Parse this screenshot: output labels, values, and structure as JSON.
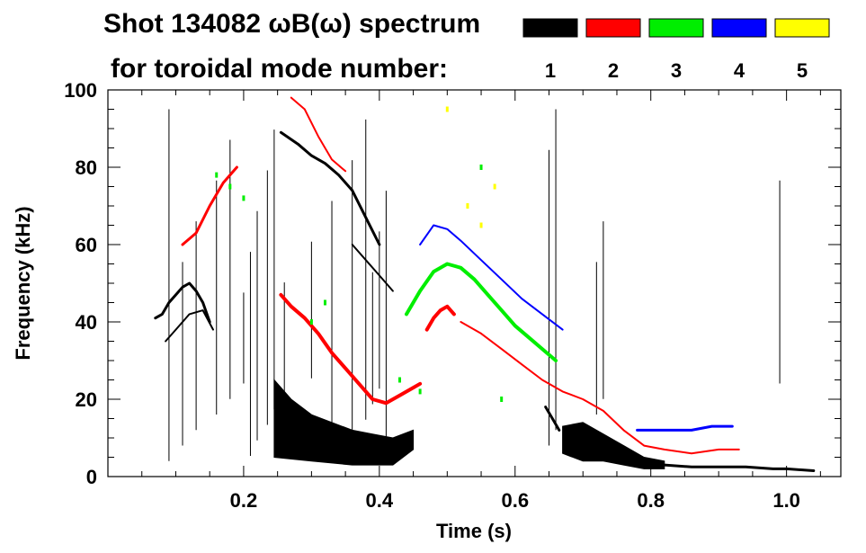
{
  "chart_data": {
    "type": "heatmap",
    "title_line1": "Shot 134082 ωB(ω) spectrum",
    "title_line2": "for toroidal mode number:",
    "xlabel": "Time (s)",
    "ylabel": "Frequency (kHz)",
    "xlim": [
      0.0,
      1.08
    ],
    "ylim": [
      0,
      100
    ],
    "x_ticks": [
      "0.2",
      "0.4",
      "0.6",
      "0.8",
      "1.0"
    ],
    "x_tick_values": [
      0.2,
      0.4,
      0.6,
      0.8,
      1.0
    ],
    "y_ticks": [
      "0",
      "20",
      "40",
      "60",
      "80",
      "100"
    ],
    "y_tick_values": [
      0,
      20,
      40,
      60,
      80,
      100
    ],
    "legend": [
      {
        "label": "1",
        "color": "#000000"
      },
      {
        "label": "2",
        "color": "#ff0000"
      },
      {
        "label": "3",
        "color": "#00ee00"
      },
      {
        "label": "4",
        "color": "#0000ff"
      },
      {
        "label": "5",
        "color": "#ffff00"
      }
    ],
    "legend_placement": "top-right",
    "features": [
      {
        "mode": "1",
        "kind": "line",
        "name": "n1-early-burst",
        "width": 3,
        "points": [
          [
            0.07,
            41
          ],
          [
            0.08,
            42
          ],
          [
            0.09,
            45
          ],
          [
            0.1,
            47
          ],
          [
            0.11,
            49
          ],
          [
            0.12,
            50
          ],
          [
            0.13,
            48
          ],
          [
            0.14,
            45
          ],
          [
            0.15,
            40
          ]
        ]
      },
      {
        "mode": "1",
        "kind": "line",
        "name": "n1-early-burst-2",
        "width": 2,
        "points": [
          [
            0.085,
            35
          ],
          [
            0.1,
            38
          ],
          [
            0.12,
            42
          ],
          [
            0.14,
            43
          ],
          [
            0.155,
            38
          ]
        ]
      },
      {
        "mode": "1",
        "kind": "band",
        "name": "n1-low-band",
        "points": [
          [
            0.245,
            25
          ],
          [
            0.27,
            20
          ],
          [
            0.3,
            16
          ],
          [
            0.33,
            14
          ],
          [
            0.36,
            12
          ],
          [
            0.39,
            11
          ],
          [
            0.42,
            10
          ],
          [
            0.45,
            12
          ]
        ],
        "lower": [
          [
            0.245,
            5
          ],
          [
            0.3,
            4
          ],
          [
            0.36,
            3
          ],
          [
            0.42,
            3
          ],
          [
            0.45,
            7
          ]
        ]
      },
      {
        "mode": "1",
        "kind": "line",
        "name": "n1-upper-branch",
        "width": 3,
        "points": [
          [
            0.255,
            89
          ],
          [
            0.28,
            86
          ],
          [
            0.3,
            83
          ],
          [
            0.32,
            81
          ],
          [
            0.34,
            78
          ],
          [
            0.36,
            74
          ],
          [
            0.38,
            67
          ],
          [
            0.4,
            60
          ]
        ]
      },
      {
        "mode": "1",
        "kind": "line",
        "name": "n1-mid-branch",
        "width": 2,
        "points": [
          [
            0.36,
            60
          ],
          [
            0.38,
            56
          ],
          [
            0.4,
            52
          ],
          [
            0.42,
            48
          ]
        ]
      },
      {
        "mode": "1",
        "kind": "line",
        "name": "n1-0.65-burst",
        "width": 3,
        "points": [
          [
            0.645,
            18
          ],
          [
            0.655,
            15
          ],
          [
            0.665,
            12
          ]
        ]
      },
      {
        "mode": "1",
        "kind": "band",
        "name": "n1-late-band",
        "points": [
          [
            0.67,
            13
          ],
          [
            0.7,
            14
          ],
          [
            0.73,
            11
          ],
          [
            0.76,
            8
          ],
          [
            0.79,
            5
          ],
          [
            0.82,
            4
          ]
        ],
        "lower": [
          [
            0.67,
            6
          ],
          [
            0.7,
            4
          ],
          [
            0.73,
            4
          ],
          [
            0.76,
            3
          ],
          [
            0.79,
            2
          ],
          [
            0.82,
            2
          ]
        ]
      },
      {
        "mode": "1",
        "kind": "line",
        "name": "n1-tail",
        "width": 3,
        "points": [
          [
            0.82,
            3
          ],
          [
            0.86,
            2.5
          ],
          [
            0.9,
            2.5
          ],
          [
            0.94,
            2.5
          ],
          [
            0.98,
            2
          ],
          [
            1.0,
            2
          ],
          [
            1.04,
            1.5
          ]
        ]
      },
      {
        "mode": "1",
        "kind": "spikes",
        "name": "n1-vertical-spikes",
        "xs": [
          0.09,
          0.11,
          0.13,
          0.16,
          0.18,
          0.2,
          0.21,
          0.22,
          0.235,
          0.245,
          0.26,
          0.3,
          0.33,
          0.36,
          0.38,
          0.39,
          0.4,
          0.41,
          0.65,
          0.66,
          0.72,
          0.73,
          0.99
        ],
        "ymin": 4,
        "ymax": 95
      },
      {
        "mode": "2",
        "kind": "line",
        "name": "n2-early",
        "width": 3,
        "points": [
          [
            0.11,
            60
          ],
          [
            0.13,
            63
          ],
          [
            0.15,
            70
          ],
          [
            0.17,
            76
          ],
          [
            0.19,
            80
          ]
        ]
      },
      {
        "mode": "2",
        "kind": "line",
        "name": "n2-main-chirp",
        "width": 4,
        "points": [
          [
            0.255,
            47
          ],
          [
            0.27,
            44
          ],
          [
            0.29,
            41
          ],
          [
            0.31,
            37
          ],
          [
            0.33,
            32
          ],
          [
            0.35,
            28
          ],
          [
            0.37,
            24
          ],
          [
            0.39,
            20
          ],
          [
            0.41,
            19
          ],
          [
            0.43,
            21
          ],
          [
            0.45,
            23
          ],
          [
            0.46,
            24
          ]
        ]
      },
      {
        "mode": "2",
        "kind": "line",
        "name": "n2-upper",
        "width": 2,
        "points": [
          [
            0.27,
            98
          ],
          [
            0.29,
            95
          ],
          [
            0.31,
            88
          ],
          [
            0.33,
            82
          ],
          [
            0.35,
            79
          ]
        ]
      },
      {
        "mode": "2",
        "kind": "line",
        "name": "n2-arch",
        "width": 4,
        "points": [
          [
            0.47,
            38
          ],
          [
            0.48,
            41
          ],
          [
            0.49,
            43
          ],
          [
            0.5,
            44
          ],
          [
            0.51,
            42
          ]
        ]
      },
      {
        "mode": "2",
        "kind": "line",
        "name": "n2-descent",
        "width": 2,
        "points": [
          [
            0.52,
            40
          ],
          [
            0.55,
            37
          ],
          [
            0.58,
            33
          ],
          [
            0.61,
            29
          ],
          [
            0.64,
            25
          ],
          [
            0.67,
            22
          ],
          [
            0.7,
            20
          ],
          [
            0.73,
            17
          ],
          [
            0.76,
            12
          ],
          [
            0.79,
            8
          ],
          [
            0.82,
            7
          ],
          [
            0.86,
            6
          ],
          [
            0.9,
            7
          ],
          [
            0.93,
            7
          ]
        ]
      },
      {
        "mode": "3",
        "kind": "line",
        "name": "n3-arch",
        "width": 4,
        "points": [
          [
            0.44,
            42
          ],
          [
            0.46,
            48
          ],
          [
            0.48,
            53
          ],
          [
            0.5,
            55
          ],
          [
            0.52,
            54
          ],
          [
            0.54,
            51
          ],
          [
            0.56,
            47
          ],
          [
            0.58,
            43
          ],
          [
            0.6,
            39
          ],
          [
            0.62,
            36
          ],
          [
            0.64,
            33
          ],
          [
            0.66,
            30
          ]
        ]
      },
      {
        "mode": "3",
        "kind": "scatter",
        "name": "n3-dots",
        "points": [
          [
            0.16,
            78
          ],
          [
            0.18,
            75
          ],
          [
            0.2,
            72
          ],
          [
            0.3,
            40
          ],
          [
            0.32,
            45
          ],
          [
            0.43,
            25
          ],
          [
            0.46,
            22
          ],
          [
            0.55,
            80
          ],
          [
            0.58,
            20
          ]
        ]
      },
      {
        "mode": "4",
        "kind": "line",
        "name": "n4-arch",
        "width": 2,
        "points": [
          [
            0.46,
            60
          ],
          [
            0.48,
            65
          ],
          [
            0.5,
            64
          ],
          [
            0.52,
            61
          ],
          [
            0.55,
            56
          ],
          [
            0.58,
            51
          ],
          [
            0.61,
            46
          ],
          [
            0.64,
            42
          ],
          [
            0.67,
            38
          ]
        ]
      },
      {
        "mode": "4",
        "kind": "line",
        "name": "n4-late",
        "width": 3,
        "points": [
          [
            0.78,
            12
          ],
          [
            0.82,
            12
          ],
          [
            0.86,
            12
          ],
          [
            0.89,
            13
          ],
          [
            0.92,
            13
          ]
        ]
      },
      {
        "mode": "5",
        "kind": "scatter",
        "name": "n5-dots",
        "points": [
          [
            0.5,
            95
          ],
          [
            0.53,
            70
          ],
          [
            0.55,
            65
          ],
          [
            0.57,
            75
          ]
        ]
      }
    ]
  }
}
